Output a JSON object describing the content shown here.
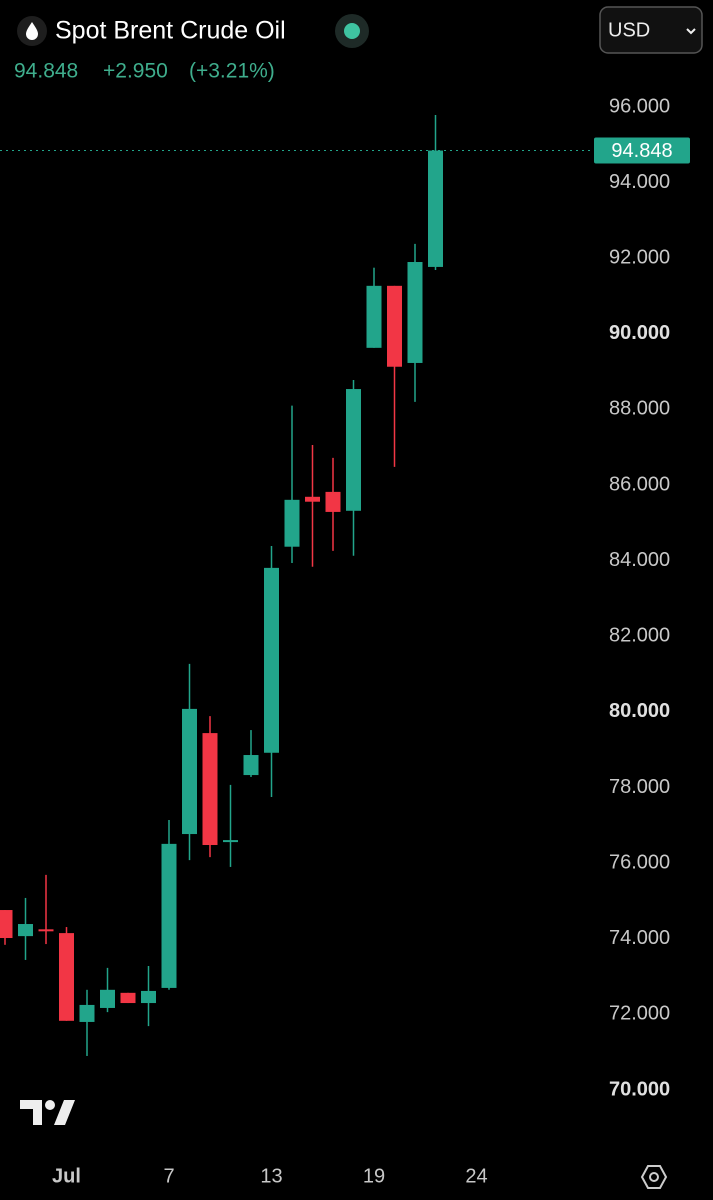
{
  "header": {
    "title": "Spot Brent Crude Oil",
    "change": "+2.950",
    "change_pct": "(+3.21%)",
    "currency": "USD"
  },
  "chart_data": {
    "type": "candlestick",
    "categories": [
      null,
      null,
      null,
      "Jul",
      null,
      null,
      null,
      null,
      "7",
      null,
      null,
      null,
      null,
      "13",
      null,
      null,
      null,
      null,
      "19",
      null,
      null,
      null,
      null,
      "24"
    ],
    "open": [
      74.76,
      74.07,
      74.25,
      74.15,
      71.8,
      72.17,
      72.57,
      72.3,
      72.7,
      76.77,
      79.44,
      76.58,
      78.33,
      78.92,
      84.37,
      85.69,
      85.82,
      85.32,
      89.63,
      91.27,
      89.23,
      91.77,
      null,
      null
    ],
    "high": [
      74.76,
      75.08,
      75.69,
      74.31,
      72.65,
      73.23,
      72.57,
      73.28,
      77.14,
      81.27,
      79.89,
      78.07,
      79.52,
      84.39,
      88.1,
      87.06,
      86.72,
      88.78,
      91.75,
      91.27,
      92.38,
      95.79,
      null,
      null
    ],
    "low": [
      73.84,
      73.44,
      73.86,
      71.83,
      70.9,
      72.06,
      72.3,
      71.69,
      72.65,
      76.08,
      76.16,
      75.9,
      78.28,
      77.75,
      83.94,
      83.84,
      84.26,
      84.13,
      89.63,
      86.48,
      88.2,
      91.69,
      null,
      null
    ],
    "close": [
      74.02,
      74.39,
      74.22,
      71.83,
      72.25,
      72.65,
      72.3,
      72.62,
      76.51,
      80.08,
      76.48,
      76.61,
      78.86,
      83.81,
      85.61,
      85.56,
      85.29,
      88.54,
      91.27,
      89.13,
      91.9,
      94.848,
      null,
      null
    ],
    "up_color": "#22a58b",
    "down_color": "#f23645",
    "ylim": [
      68.5,
      97.5
    ],
    "yticks": [
      {
        "value": 70,
        "label": "70.000"
      },
      {
        "value": 72,
        "label": "72.000"
      },
      {
        "value": 74,
        "label": "74.000"
      },
      {
        "value": 76,
        "label": "76.000"
      },
      {
        "value": 78,
        "label": "78.000"
      },
      {
        "value": 80,
        "label": "80.000"
      },
      {
        "value": 82,
        "label": "82.000"
      },
      {
        "value": 84,
        "label": "84.000"
      },
      {
        "value": 86,
        "label": "86.000"
      },
      {
        "value": 88,
        "label": "88.000"
      },
      {
        "value": 90,
        "label": "90.000"
      },
      {
        "value": 92,
        "label": "92.000"
      },
      {
        "value": 94,
        "label": "94.000"
      },
      {
        "value": 96,
        "label": "96.000"
      }
    ]
  }
}
